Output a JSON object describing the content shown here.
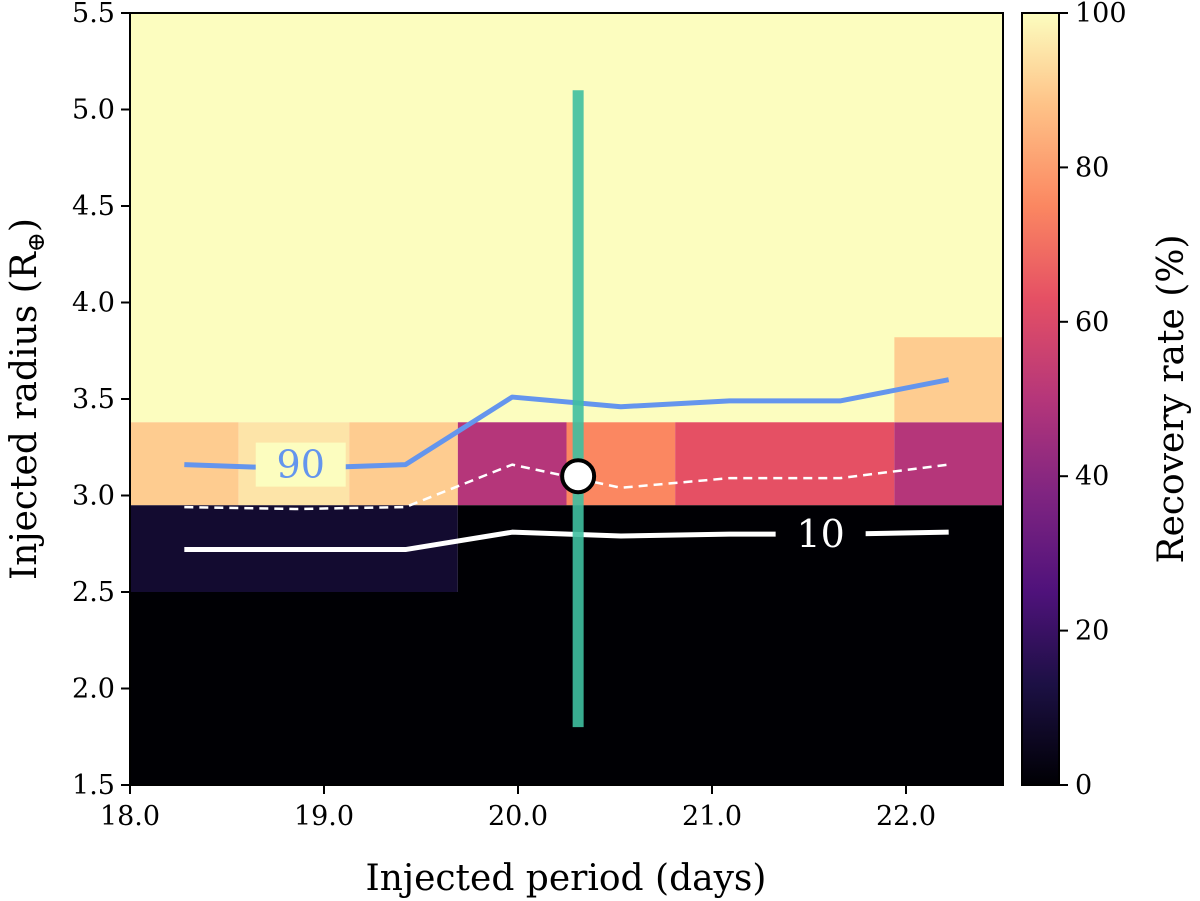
{
  "chart_data": {
    "type": "heatmap",
    "xlabel": "Injected period (days)",
    "ylabel_main": "Injected radius (R",
    "ylabel_sub": "⊕",
    "ylabel_end": ")",
    "colorbar_label": "Recovery rate (%)",
    "xlim": [
      18.0,
      22.5
    ],
    "ylim": [
      1.5,
      5.5
    ],
    "clim": [
      0,
      100
    ],
    "colormap": "magma",
    "xticks": [
      {
        "value": 18.0,
        "label": "18.0"
      },
      {
        "value": 19.0,
        "label": "19.0"
      },
      {
        "value": 20.0,
        "label": "20.0"
      },
      {
        "value": 21.0,
        "label": "21.0"
      },
      {
        "value": 22.0,
        "label": "22.0"
      }
    ],
    "yticks": [
      {
        "value": 1.5,
        "label": "1.5"
      },
      {
        "value": 2.0,
        "label": "2.0"
      },
      {
        "value": 2.5,
        "label": "2.5"
      },
      {
        "value": 3.0,
        "label": "3.0"
      },
      {
        "value": 3.5,
        "label": "3.5"
      },
      {
        "value": 4.0,
        "label": "4.0"
      },
      {
        "value": 4.5,
        "label": "4.5"
      },
      {
        "value": 5.0,
        "label": "5.0"
      },
      {
        "value": 5.5,
        "label": "5.5"
      }
    ],
    "cbar_ticks": [
      {
        "value": 0,
        "label": "0"
      },
      {
        "value": 20,
        "label": "20"
      },
      {
        "value": 40,
        "label": "40"
      },
      {
        "value": 60,
        "label": "60"
      },
      {
        "value": 80,
        "label": "80"
      },
      {
        "value": 100,
        "label": "100"
      }
    ],
    "cells": [
      {
        "x0": 18.0,
        "x1": 22.5,
        "y0": 1.5,
        "y1": 2.5,
        "value": 0
      },
      {
        "x0": 18.0,
        "x1": 19.69,
        "y0": 2.5,
        "y1": 2.95,
        "value": 9
      },
      {
        "x0": 19.69,
        "x1": 22.5,
        "y0": 2.5,
        "y1": 2.95,
        "value": 0
      },
      {
        "x0": 18.0,
        "x1": 18.56,
        "y0": 2.95,
        "y1": 3.38,
        "value": 90
      },
      {
        "x0": 18.56,
        "x1": 19.13,
        "y0": 2.95,
        "y1": 3.38,
        "value": 95
      },
      {
        "x0": 19.13,
        "x1": 19.69,
        "y0": 2.95,
        "y1": 3.38,
        "value": 90
      },
      {
        "x0": 19.69,
        "x1": 20.25,
        "y0": 2.95,
        "y1": 3.38,
        "value": 50
      },
      {
        "x0": 20.25,
        "x1": 20.81,
        "y0": 2.95,
        "y1": 3.38,
        "value": 75
      },
      {
        "x0": 20.81,
        "x1": 21.94,
        "y0": 2.95,
        "y1": 3.38,
        "value": 63
      },
      {
        "x0": 21.94,
        "x1": 22.5,
        "y0": 2.95,
        "y1": 3.38,
        "value": 50
      },
      {
        "x0": 18.0,
        "x1": 22.5,
        "y0": 3.38,
        "y1": 5.5,
        "value": 100
      },
      {
        "x0": 21.94,
        "x1": 22.5,
        "y0": 3.38,
        "y1": 3.82,
        "value": 90
      }
    ],
    "contours": [
      {
        "level": 90,
        "label": "90",
        "color": "#6495ed",
        "dashed": false,
        "width": 5,
        "label_at": [
          18.88,
          3.16
        ],
        "points": [
          [
            18.28,
            3.16
          ],
          [
            18.85,
            3.14
          ],
          [
            19.42,
            3.16
          ],
          [
            19.97,
            3.51
          ],
          [
            20.53,
            3.46
          ],
          [
            21.09,
            3.49
          ],
          [
            21.66,
            3.49
          ],
          [
            22.22,
            3.6
          ]
        ]
      },
      {
        "level": 50,
        "label": "",
        "color": "#ffffff",
        "dashed": true,
        "width": 2.5,
        "points": [
          [
            18.28,
            2.94
          ],
          [
            18.85,
            2.93
          ],
          [
            19.42,
            2.94
          ],
          [
            19.97,
            3.16
          ],
          [
            20.53,
            3.04
          ],
          [
            21.09,
            3.09
          ],
          [
            21.66,
            3.09
          ],
          [
            22.22,
            3.16
          ]
        ]
      },
      {
        "level": 10,
        "label": "10",
        "color": "#ffffff",
        "dashed": false,
        "width": 5,
        "label_at": [
          21.56,
          2.8
        ],
        "points": [
          [
            18.28,
            2.72
          ],
          [
            18.85,
            2.72
          ],
          [
            19.42,
            2.72
          ],
          [
            19.97,
            2.81
          ],
          [
            20.53,
            2.79
          ],
          [
            21.09,
            2.8
          ],
          [
            21.66,
            2.8
          ],
          [
            22.22,
            2.81
          ]
        ]
      }
    ],
    "error_bar": {
      "x": 20.31,
      "y_low": 1.8,
      "y_high": 5.1,
      "color": "#3fbfa0"
    },
    "marker": {
      "x": 20.31,
      "y": 3.1,
      "color": "#ffffff",
      "edge": "#000000"
    }
  }
}
